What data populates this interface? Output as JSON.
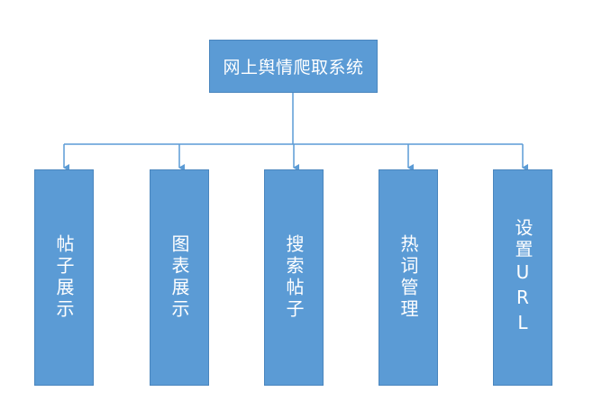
{
  "diagram": {
    "root": {
      "label": "网上舆情爬取系统"
    },
    "children": [
      {
        "label": "帖子展示"
      },
      {
        "label": "图表展示"
      },
      {
        "label": "搜索帖子"
      },
      {
        "label": "热词管理"
      },
      {
        "label": "设置URL"
      }
    ],
    "colors": {
      "node_fill": "#5b9bd5",
      "node_border": "#4a86be",
      "connector": "#5b9bd5",
      "text": "#ffffff"
    }
  }
}
